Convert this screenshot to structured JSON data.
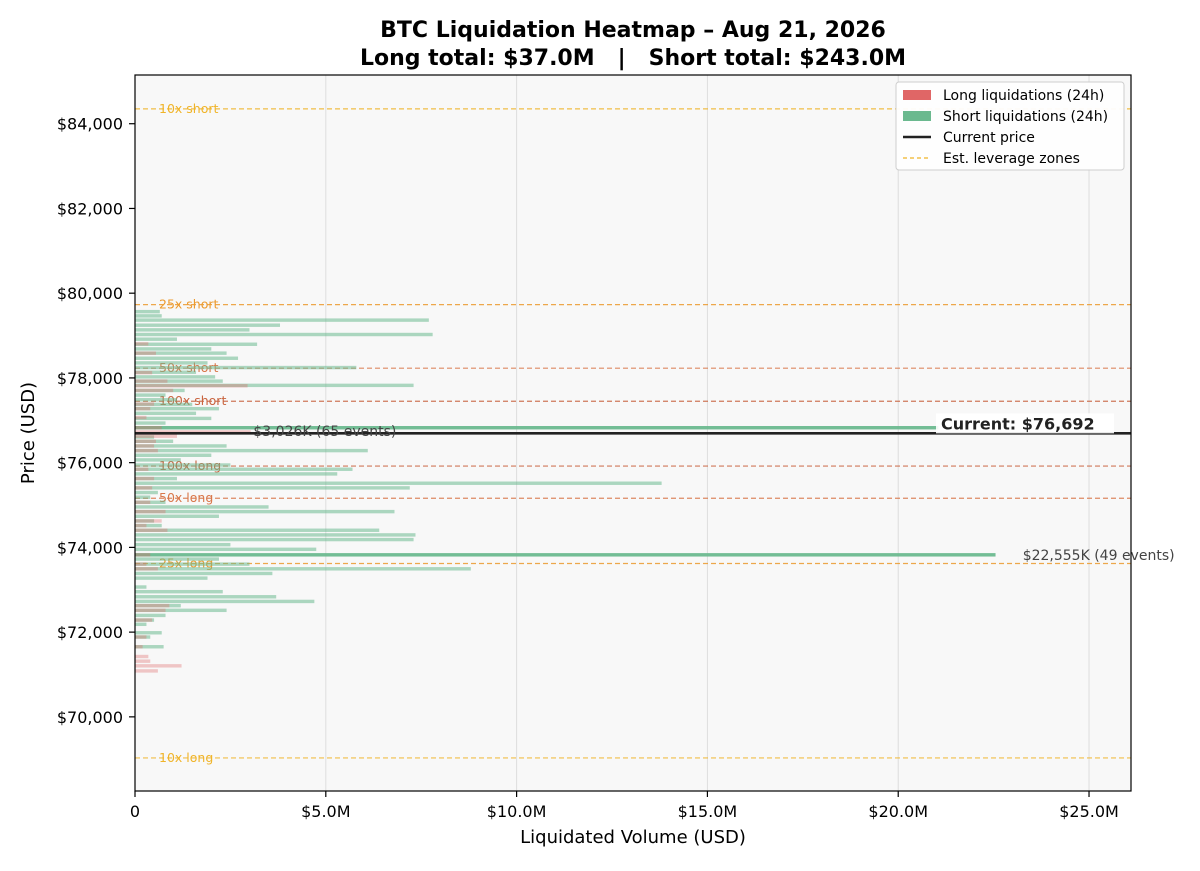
{
  "chart_data": {
    "type": "bar",
    "orientation": "horizontal",
    "title": "BTC Liquidation Heatmap – Aug 21, 2026",
    "subtitle": "Long total: $37.0M   |   Short total: $243.0M",
    "xlabel": "Liquidated Volume (USD)",
    "ylabel": "Price (USD)",
    "xlim": [
      0,
      26.1
    ],
    "ylim": [
      68250,
      85150
    ],
    "x_unit": "USD millions",
    "x_ticks": [
      {
        "value": 0,
        "label": "0"
      },
      {
        "value": 5,
        "label": "$5.0M"
      },
      {
        "value": 10,
        "label": "$10.0M"
      },
      {
        "value": 15,
        "label": "$15.0M"
      },
      {
        "value": 20,
        "label": "$20.0M"
      },
      {
        "value": 25,
        "label": "$25.0M"
      }
    ],
    "y_ticks": [
      {
        "value": 70000,
        "label": "$70,000"
      },
      {
        "value": 72000,
        "label": "$72,000"
      },
      {
        "value": 74000,
        "label": "$74,000"
      },
      {
        "value": 76000,
        "label": "$76,000"
      },
      {
        "value": 78000,
        "label": "$78,000"
      },
      {
        "value": 80000,
        "label": "$80,000"
      },
      {
        "value": 82000,
        "label": "$82,000"
      },
      {
        "value": 84000,
        "label": "$84,000"
      }
    ],
    "grid": "vertical",
    "legend_position": "top-right",
    "legend": [
      {
        "label": "Long liquidations (24h)",
        "kind": "bar",
        "color": "#e06666"
      },
      {
        "label": "Short liquidations (24h)",
        "kind": "bar",
        "color": "#6bb98f"
      },
      {
        "label": "Current price",
        "kind": "line",
        "color": "#222222"
      },
      {
        "label": "Est. leverage zones",
        "kind": "dashed",
        "color": "#f0b429"
      }
    ],
    "current_price": {
      "value": 76692,
      "label": "Current: $76,692"
    },
    "leverage_zones": [
      {
        "price": 84350,
        "label": "10x short",
        "color": "#f0b429"
      },
      {
        "price": 79730,
        "label": "25x short",
        "color": "#ec9a2e"
      },
      {
        "price": 78230,
        "label": "50x short",
        "color": "#d9774a"
      },
      {
        "price": 77450,
        "label": "100x short",
        "color": "#c9643f"
      },
      {
        "price": 75920,
        "label": "100x long",
        "color": "#c9643f"
      },
      {
        "price": 75160,
        "label": "50x long",
        "color": "#d9774a"
      },
      {
        "price": 73620,
        "label": "25x long",
        "color": "#ec9a2e"
      },
      {
        "price": 69030,
        "label": "10x long",
        "color": "#f0b429"
      }
    ],
    "annotations": [
      {
        "label": "$3,026K (65 events)",
        "price": 76750,
        "value": 3.05
      },
      {
        "label": "$22,555K (49 events)",
        "price": 73820,
        "value": 23.0
      }
    ],
    "bin_height": 90,
    "short_liquidations": [
      {
        "price": 79560,
        "value": 0.65
      },
      {
        "price": 79460,
        "value": 0.7
      },
      {
        "price": 79360,
        "value": 7.7
      },
      {
        "price": 79240,
        "value": 3.8
      },
      {
        "price": 79130,
        "value": 3.0
      },
      {
        "price": 79020,
        "value": 7.8
      },
      {
        "price": 78910,
        "value": 1.1
      },
      {
        "price": 78790,
        "value": 3.2
      },
      {
        "price": 78680,
        "value": 2.0
      },
      {
        "price": 78580,
        "value": 2.4
      },
      {
        "price": 78460,
        "value": 2.7
      },
      {
        "price": 78350,
        "value": 1.9
      },
      {
        "price": 78240,
        "value": 5.8
      },
      {
        "price": 78130,
        "value": 1.6
      },
      {
        "price": 78020,
        "value": 2.1
      },
      {
        "price": 77920,
        "value": 2.3
      },
      {
        "price": 77820,
        "value": 7.3
      },
      {
        "price": 77700,
        "value": 1.3
      },
      {
        "price": 77590,
        "value": 0.8
      },
      {
        "price": 77480,
        "value": 1.1
      },
      {
        "price": 77370,
        "value": 1.5
      },
      {
        "price": 77270,
        "value": 2.2
      },
      {
        "price": 77160,
        "value": 1.6
      },
      {
        "price": 77040,
        "value": 2.0
      },
      {
        "price": 76930,
        "value": 0.8
      },
      {
        "price": 76820,
        "value": 21.05
      },
      {
        "price": 76600,
        "value": 0.5
      },
      {
        "price": 76500,
        "value": 1.0
      },
      {
        "price": 76390,
        "value": 2.4
      },
      {
        "price": 76280,
        "value": 6.1
      },
      {
        "price": 76170,
        "value": 2.0
      },
      {
        "price": 76060,
        "value": 1.2
      },
      {
        "price": 75940,
        "value": 2.5
      },
      {
        "price": 75840,
        "value": 5.7
      },
      {
        "price": 75730,
        "value": 5.3
      },
      {
        "price": 75620,
        "value": 1.1
      },
      {
        "price": 75510,
        "value": 13.8
      },
      {
        "price": 75400,
        "value": 7.2
      },
      {
        "price": 75290,
        "value": 0.6
      },
      {
        "price": 75180,
        "value": 0.4
      },
      {
        "price": 75060,
        "value": 0.8
      },
      {
        "price": 74950,
        "value": 3.5
      },
      {
        "price": 74840,
        "value": 6.8
      },
      {
        "price": 74730,
        "value": 2.2
      },
      {
        "price": 74620,
        "value": 0.5
      },
      {
        "price": 74510,
        "value": 0.7
      },
      {
        "price": 74400,
        "value": 6.4
      },
      {
        "price": 74290,
        "value": 7.35
      },
      {
        "price": 74180,
        "value": 7.3
      },
      {
        "price": 74060,
        "value": 2.5
      },
      {
        "price": 73950,
        "value": 4.75
      },
      {
        "price": 73820,
        "value": 22.55
      },
      {
        "price": 73720,
        "value": 2.2
      },
      {
        "price": 73600,
        "value": 3.0
      },
      {
        "price": 73490,
        "value": 8.8
      },
      {
        "price": 73380,
        "value": 3.6
      },
      {
        "price": 73270,
        "value": 1.9
      },
      {
        "price": 73060,
        "value": 0.3
      },
      {
        "price": 72950,
        "value": 2.3
      },
      {
        "price": 72830,
        "value": 3.7
      },
      {
        "price": 72720,
        "value": 4.7
      },
      {
        "price": 72620,
        "value": 1.2
      },
      {
        "price": 72510,
        "value": 2.4
      },
      {
        "price": 72390,
        "value": 0.8
      },
      {
        "price": 72280,
        "value": 0.5
      },
      {
        "price": 72180,
        "value": 0.3
      },
      {
        "price": 71980,
        "value": 0.7
      },
      {
        "price": 71880,
        "value": 0.4
      },
      {
        "price": 71650,
        "value": 0.75
      }
    ],
    "long_liquidations": [
      {
        "price": 78800,
        "value": 0.35
      },
      {
        "price": 78580,
        "value": 0.55
      },
      {
        "price": 78120,
        "value": 0.45
      },
      {
        "price": 77920,
        "value": 0.85
      },
      {
        "price": 77810,
        "value": 2.95
      },
      {
        "price": 77700,
        "value": 1.0
      },
      {
        "price": 77380,
        "value": 0.5
      },
      {
        "price": 77270,
        "value": 0.4
      },
      {
        "price": 77060,
        "value": 0.3
      },
      {
        "price": 76820,
        "value": 0.7
      },
      {
        "price": 76720,
        "value": 3.03
      },
      {
        "price": 76620,
        "value": 1.1
      },
      {
        "price": 76500,
        "value": 0.55
      },
      {
        "price": 76390,
        "value": 0.5
      },
      {
        "price": 76280,
        "value": 0.6
      },
      {
        "price": 75840,
        "value": 0.35
      },
      {
        "price": 75620,
        "value": 0.5
      },
      {
        "price": 75400,
        "value": 0.45
      },
      {
        "price": 75060,
        "value": 0.4
      },
      {
        "price": 74840,
        "value": 0.8
      },
      {
        "price": 74620,
        "value": 0.7
      },
      {
        "price": 74510,
        "value": 0.3
      },
      {
        "price": 74400,
        "value": 0.85
      },
      {
        "price": 73820,
        "value": 0.4
      },
      {
        "price": 73600,
        "value": 0.3
      },
      {
        "price": 73490,
        "value": 0.6
      },
      {
        "price": 72620,
        "value": 0.9
      },
      {
        "price": 72510,
        "value": 0.8
      },
      {
        "price": 72280,
        "value": 0.45
      },
      {
        "price": 71880,
        "value": 0.3
      },
      {
        "price": 71650,
        "value": 0.2
      },
      {
        "price": 71420,
        "value": 0.35
      },
      {
        "price": 71310,
        "value": 0.4
      },
      {
        "price": 71200,
        "value": 1.22
      },
      {
        "price": 71080,
        "value": 0.6
      }
    ]
  }
}
